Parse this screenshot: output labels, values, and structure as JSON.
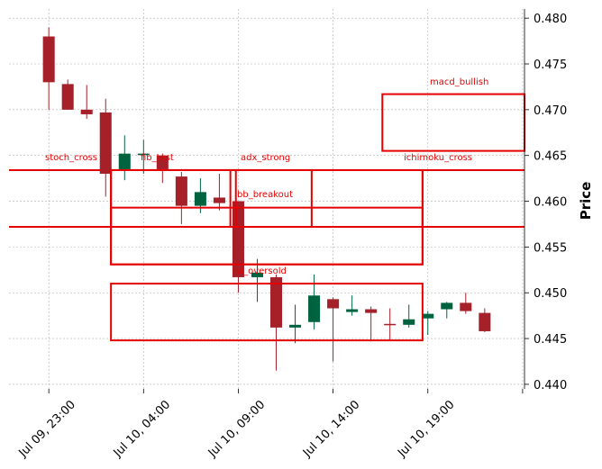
{
  "chart_data": {
    "type": "candlestick",
    "ylabel": "Price",
    "ylim": [
      0.4395,
      0.481
    ],
    "y_ticks": [
      0.44,
      0.445,
      0.45,
      0.455,
      0.46,
      0.465,
      0.47,
      0.475,
      0.48
    ],
    "y_tick_labels": [
      "0.440",
      "0.445",
      "0.450",
      "0.455",
      "0.460",
      "0.465",
      "0.470",
      "0.475",
      "0.480"
    ],
    "x_ticks": [
      {
        "label": "Jul 09, 23:00",
        "index": 0
      },
      {
        "label": "Jul 10, 04:00",
        "index": 5
      },
      {
        "label": "Jul 10, 09:00",
        "index": 10
      },
      {
        "label": "Jul 10, 14:00",
        "index": 15
      },
      {
        "label": "Jul 10, 19:00",
        "index": 20
      },
      {
        "label": "",
        "index": 25
      }
    ],
    "x_range": [
      -2.1,
      25.1
    ],
    "grid": true,
    "colors": {
      "up": "#006340",
      "down": "#a52029",
      "annotation": "#e60000",
      "grid": "#b0b0b0"
    },
    "candles": [
      {
        "o": 0.478,
        "h": 0.479,
        "l": 0.47,
        "c": 0.473
      },
      {
        "o": 0.4728,
        "h": 0.4733,
        "l": 0.47,
        "c": 0.47
      },
      {
        "o": 0.47,
        "h": 0.4727,
        "l": 0.469,
        "c": 0.4695
      },
      {
        "o": 0.4697,
        "h": 0.4712,
        "l": 0.4605,
        "c": 0.463
      },
      {
        "o": 0.4635,
        "h": 0.4672,
        "l": 0.4623,
        "c": 0.4652
      },
      {
        "o": 0.4652,
        "h": 0.4667,
        "l": 0.463,
        "c": 0.4652
      },
      {
        "o": 0.465,
        "h": 0.4652,
        "l": 0.462,
        "c": 0.4635
      },
      {
        "o": 0.4627,
        "h": 0.4632,
        "l": 0.4575,
        "c": 0.4595
      },
      {
        "o": 0.4595,
        "h": 0.4625,
        "l": 0.4587,
        "c": 0.461
      },
      {
        "o": 0.4604,
        "h": 0.463,
        "l": 0.459,
        "c": 0.4598
      },
      {
        "o": 0.46,
        "h": 0.46,
        "l": 0.45,
        "c": 0.4517
      },
      {
        "o": 0.4517,
        "h": 0.4537,
        "l": 0.449,
        "c": 0.4522
      },
      {
        "o": 0.4517,
        "h": 0.452,
        "l": 0.4415,
        "c": 0.4462
      },
      {
        "o": 0.4462,
        "h": 0.4487,
        "l": 0.4445,
        "c": 0.4465
      },
      {
        "o": 0.4468,
        "h": 0.452,
        "l": 0.446,
        "c": 0.4497
      },
      {
        "o": 0.4493,
        "h": 0.4495,
        "l": 0.4425,
        "c": 0.4483
      },
      {
        "o": 0.4479,
        "h": 0.4497,
        "l": 0.4475,
        "c": 0.4482
      },
      {
        "o": 0.4482,
        "h": 0.4485,
        "l": 0.4447,
        "c": 0.4478
      },
      {
        "o": 0.4466,
        "h": 0.4483,
        "l": 0.4448,
        "c": 0.4465
      },
      {
        "o": 0.4465,
        "h": 0.4487,
        "l": 0.4462,
        "c": 0.4471
      },
      {
        "o": 0.4472,
        "h": 0.448,
        "l": 0.4454,
        "c": 0.4477
      },
      {
        "o": 0.4482,
        "h": 0.449,
        "l": 0.4472,
        "c": 0.4489
      },
      {
        "o": 0.4489,
        "h": 0.45,
        "l": 0.4477,
        "c": 0.448
      },
      {
        "o": 0.4478,
        "h": 0.4483,
        "l": 0.4457,
        "c": 0.4458
      }
    ],
    "hlines": [
      0.4634,
      0.4572
    ],
    "annotations": [
      {
        "label": "stoch_cross",
        "x0": 3.28,
        "x1": 9.87,
        "y0": 0.4572,
        "y1": 0.4634
      },
      {
        "label": "fib_test",
        "x0": 3.28,
        "x1": 13.87,
        "y0": 0.4572,
        "y1": 0.4634
      },
      {
        "label": "adx_strong",
        "x0": 9.58,
        "x1": 19.72,
        "y0": 0.4572,
        "y1": 0.4634
      },
      {
        "label": "ichimoku_cross",
        "x0": 3.28,
        "x1": 19.72,
        "y0": 0.4531,
        "y1": 0.4634
      },
      {
        "label": "bb_breakout",
        "x0": 3.28,
        "x1": 19.72,
        "y0": 0.4531,
        "y1": 0.4593
      },
      {
        "label": "macd_bullish",
        "x0": 17.6,
        "x1": 25.1,
        "y0": 0.4655,
        "y1": 0.4717
      },
      {
        "label": "rsi_oversold",
        "x0": 3.28,
        "x1": 19.72,
        "y0": 0.4448,
        "y1": 0.451
      }
    ]
  }
}
